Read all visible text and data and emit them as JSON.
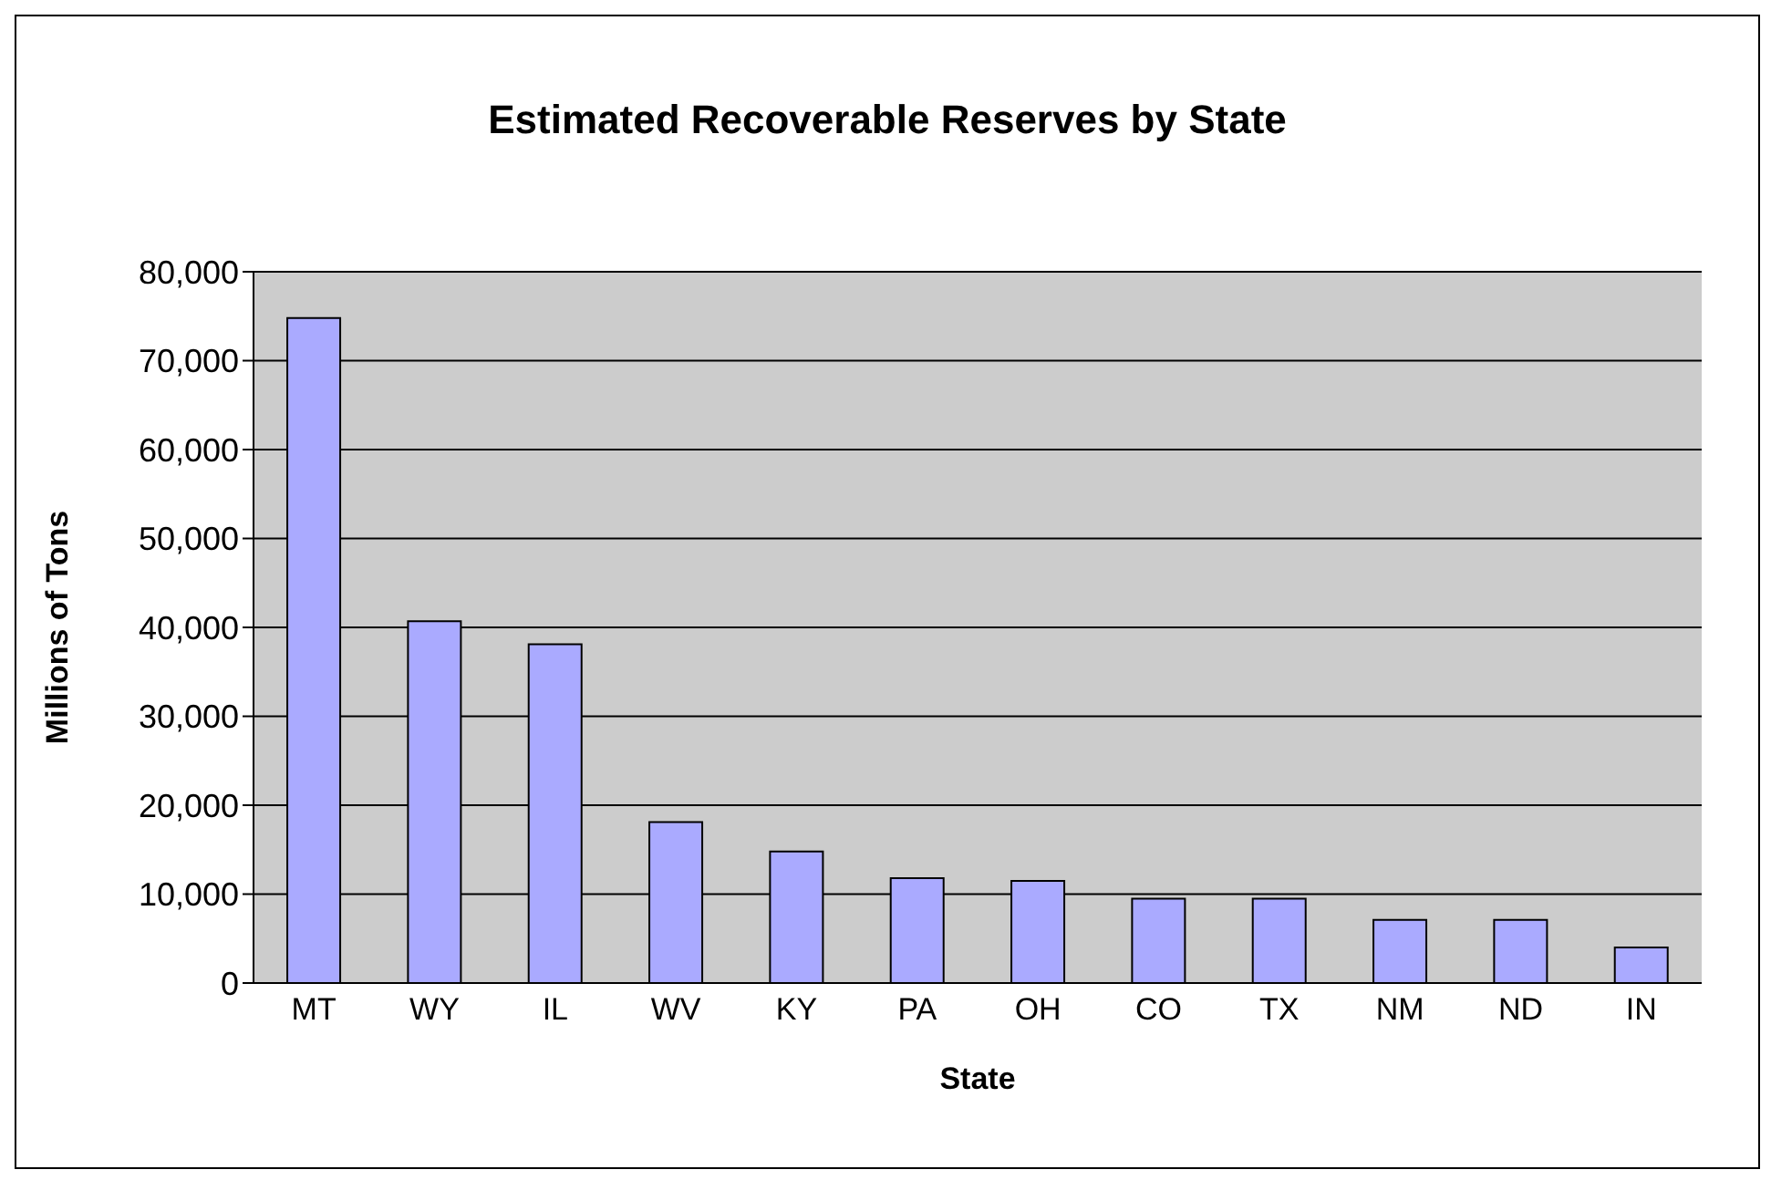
{
  "chart_data": {
    "type": "bar",
    "title": "Estimated Recoverable Reserves by State",
    "xlabel": "State",
    "ylabel": "Millions of Tons",
    "categories": [
      "MT",
      "WY",
      "IL",
      "WV",
      "KY",
      "PA",
      "OH",
      "CO",
      "TX",
      "NM",
      "ND",
      "IN"
    ],
    "values": [
      74800,
      40700,
      38100,
      18100,
      14800,
      11800,
      11500,
      9500,
      9500,
      7100,
      7100,
      4000
    ],
    "color": "#aaaaff",
    "ylim": [
      0,
      80000
    ],
    "yticks": [
      0,
      {
        "value": 10000,
        "label": "10,000"
      },
      {
        "value": 20000,
        "label": "20,000"
      },
      {
        "value": 30000,
        "label": "30,000"
      },
      {
        "value": 40000,
        "label": "40,000"
      },
      {
        "value": 50000,
        "label": "50,000"
      },
      {
        "value": 60000,
        "label": "60,000"
      },
      {
        "value": 70000,
        "label": "70,000"
      },
      {
        "value": 80000,
        "label": "80,000"
      }
    ],
    "grid": "y"
  }
}
